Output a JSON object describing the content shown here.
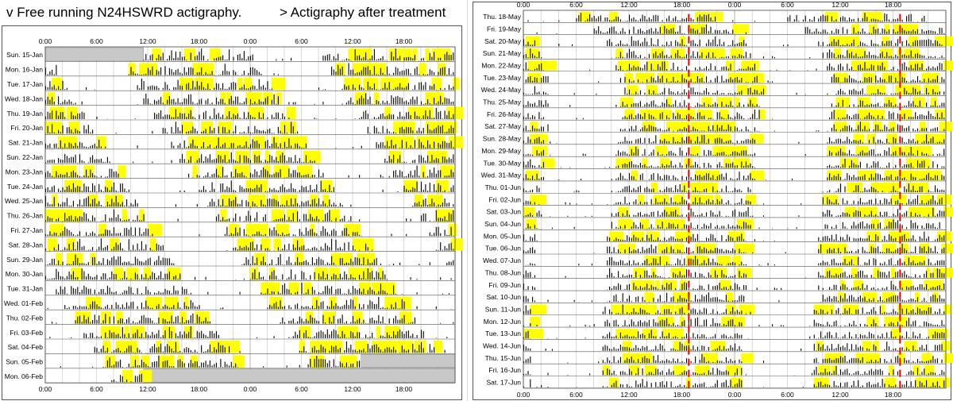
{
  "headings": {
    "left": "v Free running N24HSWRD actigraphy.",
    "right": "> Actigraphy after treatment"
  },
  "colors": {
    "activity": "#000000",
    "light_exposure": "#ffff00",
    "missing_data": "#c8c8c8",
    "marker": "#e00000",
    "grid": "#b4b4b4"
  },
  "chart_data": [
    {
      "type": "actogram",
      "title": "v Free running N24HSWRD actigraphy.",
      "x_axis": {
        "unit": "time of day",
        "range_hours": [
          0,
          48
        ],
        "tick_labels": [
          "0:00",
          "6:00",
          "12:00",
          "18:00",
          "0:00",
          "6:00",
          "12:00",
          "18:00"
        ],
        "tick_hours": [
          0,
          6,
          12,
          18,
          24,
          30,
          36,
          42
        ]
      },
      "grid": true,
      "rows": [
        "Sun. 15-Jan",
        "Mon. 16-Jan",
        "Tue. 17-Jan",
        "Wed. 18-Jan",
        "Thu. 19-Jan",
        "Fri. 20-Jan",
        "Sat. 21-Jan",
        "Sun. 22-Jan",
        "Mon. 23-Jan",
        "Tue. 24-Jan",
        "Wed. 25-Jan",
        "Thu. 26-Jan",
        "Fri. 27-Jan",
        "Sat. 28-Jan",
        "Sun. 29-Jan",
        "Mon. 30-Jan",
        "Tue. 31-Jan",
        "Wed. 01-Feb",
        "Thu. 02-Feb",
        "Fri. 03-Feb",
        "Sat. 04-Feb",
        "Sun. 05-Feb",
        "Mon. 06-Feb"
      ],
      "sleep_start_hour": [
        0.5,
        1.5,
        2.6,
        3.5,
        4.6,
        5.6,
        6.6,
        7.6,
        8.6,
        9.8,
        10.8,
        11.8,
        12.8,
        13.9,
        15.0,
        16.0,
        17.2,
        18.2,
        19.3,
        20.4,
        21.6,
        22.6,
        23.6
      ],
      "sleep_duration_hours": 8,
      "missing_data_hours": [
        [
          [
            0,
            11.5
          ]
        ],
        [],
        [],
        [],
        [],
        [],
        [],
        [],
        [],
        [],
        [],
        [],
        [],
        [],
        [],
        [],
        [],
        [],
        [],
        [],
        [],
        [
          [
            37,
            48
          ]
        ],
        [
          [
            11.5,
            48
          ]
        ]
      ]
    },
    {
      "type": "actogram",
      "title": "> Actigraphy after treatment",
      "x_axis": {
        "unit": "time of day",
        "range_hours": [
          0,
          48
        ],
        "tick_labels": [
          "0:00",
          "6:00",
          "12:00",
          "18:00",
          "0:00",
          "6:00",
          "12:00",
          "18:00"
        ],
        "tick_hours": [
          0,
          6,
          12,
          18,
          24,
          30,
          36,
          42
        ]
      },
      "grid": true,
      "rows": [
        "Thu. 18-May",
        "Fri. 19-May",
        "Sat. 20-May",
        "Sun. 21-May",
        "Mon. 22-May",
        "Tue. 23-May",
        "Wed. 24-May",
        "Thu. 25-May",
        "Fri. 26-May",
        "Sat. 27-May",
        "Sun. 28-May",
        "Mon. 29-May",
        "Tue. 30-May",
        "Wed. 31-May",
        "Thu. 01-Jun",
        "Fri. 02-Jun",
        "Sat. 03-Jun",
        "Sun. 04-Jun",
        "Mon. 05-Jun",
        "Tue. 06-Jun",
        "Wed. 07-Jun",
        "Thu. 08-Jun",
        "Fri. 09-Jun",
        "Sat. 10-Jun",
        "Sun. 11-Jun",
        "Mon. 12-Jun",
        "Tue. 13-Jun",
        "Wed. 14-Jun",
        "Thu. 15-Jun",
        "Fri. 16-Jun",
        "Sat. 17-Jun"
      ],
      "sleep_start_hour": [
        22,
        0,
        1.5,
        2,
        2.5,
        3,
        3.5,
        3,
        3,
        3,
        2.5,
        2.5,
        2.5,
        2.5,
        2,
        2,
        2,
        2,
        1.5,
        1.5,
        1.5,
        1.5,
        1.5,
        1.5,
        1,
        1,
        1,
        1,
        1,
        1,
        1
      ],
      "sleep_duration_hours": 8,
      "marker_hours": [
        18.8,
        42.8
      ],
      "missing_data_hours": []
    }
  ]
}
